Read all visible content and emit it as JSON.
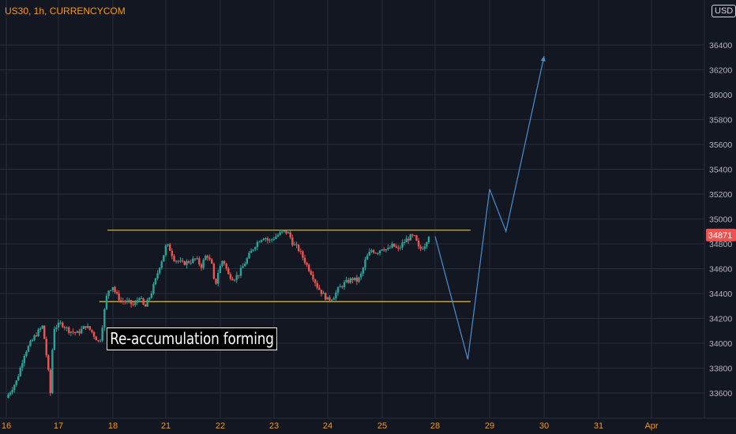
{
  "header": {
    "symbol": "US30, 1h, CURRENCYCOM",
    "currency_badge": "USD"
  },
  "annotation": {
    "text": "Re-accumulation forming"
  },
  "colors": {
    "background": "#131722",
    "grid": "#2a2e39",
    "up": "#26a69a",
    "down": "#ef5350",
    "level_line": "#e6c229",
    "projection": "#4a8fd1",
    "price_tag": "#ef5350",
    "title": "#ff9800",
    "date_label": "#ff9800",
    "axis_text": "#b2b5be"
  },
  "chart_data": {
    "type": "candlestick",
    "title": "US30, 1h, CURRENCYCOM",
    "xlabel": "",
    "ylabel": "",
    "ylim": [
      33450,
      36650
    ],
    "grid": true,
    "y_ticks": [
      33600,
      33800,
      34000,
      34200,
      34400,
      34600,
      34800,
      35000,
      35200,
      35400,
      35600,
      35800,
      36000,
      36200,
      36400
    ],
    "x_ticks": [
      {
        "label": "16",
        "x": 0
      },
      {
        "label": "17",
        "x": 1
      },
      {
        "label": "18",
        "x": 2
      },
      {
        "label": "21",
        "x": 3
      },
      {
        "label": "22",
        "x": 4
      },
      {
        "label": "23",
        "x": 5
      },
      {
        "label": "24",
        "x": 6
      },
      {
        "label": "25",
        "x": 7
      },
      {
        "label": "28",
        "x": 8
      },
      {
        "label": "29",
        "x": 9
      },
      {
        "label": "30",
        "x": 10
      },
      {
        "label": "31",
        "x": 11
      },
      {
        "label": "Apr",
        "x": 12
      }
    ],
    "last_price": 34871,
    "range_levels": [
      {
        "name": "resistance",
        "value": 34910,
        "x_start": 1.9,
        "x_end": 8.65
      },
      {
        "name": "support",
        "value": 34335,
        "x_start": 1.75,
        "x_end": 8.65
      }
    ],
    "projection_path": [
      {
        "x": 8.0,
        "y": 34860
      },
      {
        "x": 8.6,
        "y": 33870
      },
      {
        "x": 9.0,
        "y": 35240
      },
      {
        "x": 9.3,
        "y": 34900
      },
      {
        "x": 10.0,
        "y": 36310
      }
    ],
    "series_path": [
      [
        0.0,
        33560
      ],
      [
        0.2,
        33700
      ],
      [
        0.35,
        33920
      ],
      [
        0.55,
        34060
      ],
      [
        0.7,
        34140
      ],
      [
        0.8,
        33800
      ],
      [
        0.85,
        33580
      ],
      [
        0.9,
        34120
      ],
      [
        1.05,
        34160
      ],
      [
        1.2,
        34100
      ],
      [
        1.35,
        34080
      ],
      [
        1.5,
        34140
      ],
      [
        1.6,
        34100
      ],
      [
        1.75,
        34000
      ],
      [
        1.78,
        34060
      ],
      [
        1.84,
        34250
      ],
      [
        1.9,
        34420
      ],
      [
        2.0,
        34460
      ],
      [
        2.05,
        34400
      ],
      [
        2.15,
        34340
      ],
      [
        2.3,
        34330
      ],
      [
        2.4,
        34300
      ],
      [
        2.5,
        34380
      ],
      [
        2.6,
        34280
      ],
      [
        2.72,
        34400
      ],
      [
        2.8,
        34500
      ],
      [
        2.88,
        34620
      ],
      [
        2.95,
        34700
      ],
      [
        3.0,
        34780
      ],
      [
        3.05,
        34780
      ],
      [
        3.15,
        34680
      ],
      [
        3.3,
        34640
      ],
      [
        3.45,
        34660
      ],
      [
        3.55,
        34680
      ],
      [
        3.65,
        34620
      ],
      [
        3.75,
        34720
      ],
      [
        3.85,
        34620
      ],
      [
        3.9,
        34440
      ],
      [
        3.95,
        34560
      ],
      [
        4.05,
        34680
      ],
      [
        4.15,
        34550
      ],
      [
        4.25,
        34520
      ],
      [
        4.35,
        34560
      ],
      [
        4.45,
        34640
      ],
      [
        4.55,
        34720
      ],
      [
        4.65,
        34790
      ],
      [
        4.72,
        34830
      ],
      [
        4.82,
        34860
      ],
      [
        4.9,
        34820
      ],
      [
        5.0,
        34850
      ],
      [
        5.1,
        34880
      ],
      [
        5.2,
        34900
      ],
      [
        5.28,
        34880
      ],
      [
        5.35,
        34800
      ],
      [
        5.45,
        34760
      ],
      [
        5.55,
        34680
      ],
      [
        5.62,
        34620
      ],
      [
        5.7,
        34560
      ],
      [
        5.8,
        34460
      ],
      [
        5.9,
        34400
      ],
      [
        6.0,
        34350
      ],
      [
        6.1,
        34370
      ],
      [
        6.2,
        34440
      ],
      [
        6.3,
        34480
      ],
      [
        6.38,
        34500
      ],
      [
        6.45,
        34520
      ],
      [
        6.55,
        34500
      ],
      [
        6.62,
        34560
      ],
      [
        6.7,
        34680
      ],
      [
        6.8,
        34750
      ],
      [
        6.9,
        34730
      ],
      [
        7.0,
        34770
      ],
      [
        7.1,
        34750
      ],
      [
        7.2,
        34790
      ],
      [
        7.3,
        34750
      ],
      [
        7.38,
        34800
      ],
      [
        7.45,
        34830
      ],
      [
        7.55,
        34860
      ],
      [
        7.62,
        34850
      ],
      [
        7.7,
        34750
      ],
      [
        7.8,
        34790
      ],
      [
        7.88,
        34871
      ]
    ]
  }
}
